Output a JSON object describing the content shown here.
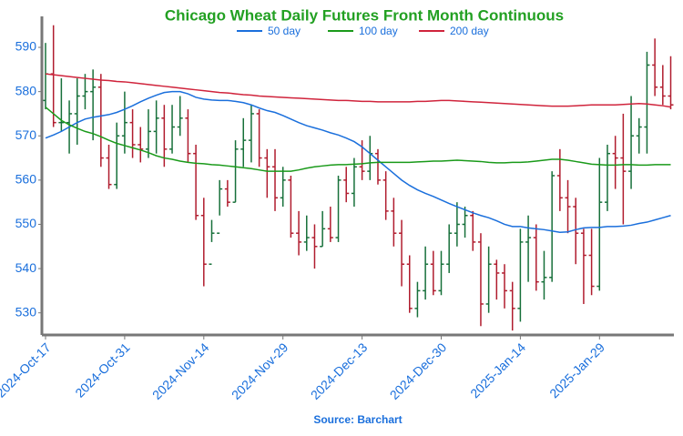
{
  "chart_data": {
    "type": "ohlc",
    "title": "Chicago Wheat Daily Futures Front Month Continuous",
    "source": "Source: Barchart",
    "x": [
      "2024-Oct-17",
      "2024-Oct-18",
      "2024-Oct-21",
      "2024-Oct-22",
      "2024-Oct-23",
      "2024-Oct-24",
      "2024-Oct-25",
      "2024-Oct-28",
      "2024-Oct-29",
      "2024-Oct-30",
      "2024-Oct-31",
      "2024-Nov-01",
      "2024-Nov-04",
      "2024-Nov-05",
      "2024-Nov-06",
      "2024-Nov-07",
      "2024-Nov-08",
      "2024-Nov-11",
      "2024-Nov-12",
      "2024-Nov-13",
      "2024-Nov-14",
      "2024-Nov-15",
      "2024-Nov-18",
      "2024-Nov-19",
      "2024-Nov-20",
      "2024-Nov-21",
      "2024-Nov-22",
      "2024-Nov-25",
      "2024-Nov-26",
      "2024-Nov-27",
      "2024-Nov-29",
      "2024-Dec-02",
      "2024-Dec-03",
      "2024-Dec-04",
      "2024-Dec-05",
      "2024-Dec-06",
      "2024-Dec-09",
      "2024-Dec-10",
      "2024-Dec-11",
      "2024-Dec-12",
      "2024-Dec-13",
      "2024-Dec-16",
      "2024-Dec-17",
      "2024-Dec-18",
      "2024-Dec-19",
      "2024-Dec-20",
      "2024-Dec-23",
      "2024-Dec-24",
      "2024-Dec-26",
      "2024-Dec-27",
      "2024-Dec-30",
      "2024-Dec-31",
      "2025-Jan-02",
      "2025-Jan-03",
      "2025-Jan-06",
      "2025-Jan-07",
      "2025-Jan-08",
      "2025-Jan-09",
      "2025-Jan-10",
      "2025-Jan-13",
      "2025-Jan-14",
      "2025-Jan-15",
      "2025-Jan-16",
      "2025-Jan-17",
      "2025-Jan-21",
      "2025-Jan-22",
      "2025-Jan-23",
      "2025-Jan-24",
      "2025-Jan-27",
      "2025-Jan-28",
      "2025-Jan-29",
      "2025-Jan-30",
      "2025-Jan-31",
      "2025-Feb-03",
      "2025-Feb-04",
      "2025-Feb-05",
      "2025-Feb-06",
      "2025-Feb-07",
      "2025-Feb-10",
      "2025-Feb-11"
    ],
    "xticks": [
      "2024-Oct-17",
      "2024-Oct-31",
      "2024-Nov-14",
      "2024-Nov-29",
      "2024-Dec-13",
      "2024-Dec-30",
      "2025-Jan-14",
      "2025-Jan-29"
    ],
    "ylim": [
      525,
      597
    ],
    "yticks": [
      530,
      540,
      550,
      560,
      570,
      580,
      590
    ],
    "up_color": "#17703a",
    "down_color": "#b01c2e",
    "legend": "top",
    "ohlc": {
      "open": [
        578,
        584,
        573,
        573,
        575,
        579,
        580,
        581,
        565,
        559,
        570,
        573,
        568,
        567,
        571,
        574,
        567,
        572,
        574,
        566,
        552,
        541,
        548,
        558,
        555,
        567,
        569,
        575,
        565,
        563,
        556,
        560,
        548,
        546,
        547,
        545,
        549,
        547,
        560,
        557,
        563,
        562,
        566,
        560,
        553,
        548,
        541,
        531,
        535,
        541,
        535,
        541,
        548,
        550,
        552,
        546,
        532,
        541,
        539,
        535,
        531,
        546,
        547,
        537,
        538,
        561,
        556,
        554,
        548,
        543,
        536,
        555,
        566,
        565,
        562,
        570,
        572,
        586,
        581,
        579
      ],
      "high": [
        591,
        595,
        583,
        578,
        583,
        584,
        585,
        584,
        568,
        573,
        580,
        576,
        572,
        576,
        578,
        577,
        577,
        579,
        576,
        568,
        556,
        551,
        560,
        560,
        569,
        574,
        577,
        576,
        567,
        567,
        563,
        561,
        553,
        552,
        550,
        553,
        554,
        561,
        563,
        565,
        569,
        570,
        567,
        562,
        556,
        551,
        543,
        537,
        545,
        544,
        544,
        550,
        555,
        554,
        553,
        548,
        545,
        542,
        541,
        537,
        549,
        552,
        550,
        544,
        562,
        567,
        560,
        556,
        549,
        549,
        565,
        568,
        570,
        575,
        579,
        574,
        589,
        592,
        586,
        588
      ],
      "low": [
        576,
        572,
        571,
        566,
        568,
        576,
        569,
        563,
        558,
        558,
        566,
        565,
        564,
        565,
        566,
        563,
        566,
        570,
        564,
        551,
        536,
        546,
        552,
        554,
        555,
        563,
        564,
        563,
        556,
        553,
        554,
        547,
        543,
        544,
        540,
        545,
        546,
        546,
        555,
        554,
        560,
        560,
        559,
        551,
        545,
        536,
        530,
        529,
        533,
        534,
        534,
        539,
        545,
        547,
        544,
        527,
        530,
        533,
        531,
        526,
        528,
        537,
        535,
        533,
        537,
        553,
        548,
        541,
        532,
        534,
        535,
        553,
        558,
        550,
        558,
        566,
        566,
        579,
        577,
        576
      ],
      "close": [
        584,
        573,
        573,
        575,
        579,
        580,
        581,
        565,
        559,
        570,
        573,
        568,
        567,
        571,
        574,
        567,
        572,
        574,
        566,
        552,
        541,
        548,
        558,
        555,
        567,
        569,
        575,
        565,
        563,
        556,
        560,
        548,
        546,
        547,
        545,
        549,
        547,
        560,
        557,
        563,
        562,
        566,
        560,
        553,
        548,
        541,
        531,
        535,
        541,
        535,
        541,
        548,
        550,
        552,
        546,
        532,
        541,
        539,
        535,
        531,
        546,
        547,
        537,
        538,
        561,
        556,
        554,
        548,
        543,
        536,
        555,
        566,
        565,
        562,
        570,
        572,
        586,
        581,
        579,
        577
      ]
    },
    "series": [
      {
        "name": "50 day",
        "color": "#1a6fdc",
        "values": [
          569.5,
          570.2,
          571,
          572,
          573,
          573.8,
          574.2,
          574.5,
          574.8,
          575.3,
          576,
          576.8,
          577.7,
          578.5,
          579.2,
          579.8,
          580,
          580,
          579.5,
          578.7,
          578.3,
          578.1,
          578,
          578,
          577.8,
          577.5,
          577,
          576.3,
          575.7,
          575.3,
          574.6,
          573.8,
          573,
          572.3,
          571.8,
          571.3,
          570.7,
          570.2,
          569.5,
          568.7,
          567.5,
          566,
          564.5,
          563,
          561.5,
          560,
          558.8,
          557.8,
          557,
          556.3,
          555.5,
          554.7,
          554,
          553.3,
          552.6,
          552,
          551.5,
          550.8,
          550,
          549.5,
          549.5,
          549.2,
          549,
          548.8,
          548.5,
          548.2,
          548.3,
          548.8,
          549.2,
          549.3,
          549.3,
          549.5,
          549.5,
          549.6,
          549.8,
          550.2,
          550.5,
          551,
          551.5,
          552
        ]
      },
      {
        "name": "100 day",
        "color": "#1a9a1a",
        "values": [
          576.5,
          575,
          573.5,
          572.5,
          571.7,
          571,
          570.5,
          569.8,
          569,
          568.3,
          567.8,
          567.3,
          566.8,
          566.2,
          565.5,
          565,
          564.7,
          564.3,
          564,
          563.8,
          563.7,
          563.5,
          563.4,
          563.2,
          563,
          562.8,
          562.6,
          562.3,
          562,
          562,
          562,
          562,
          562.3,
          562.7,
          563,
          563.2,
          563.4,
          563.5,
          563.5,
          563.6,
          563.7,
          563.9,
          564,
          564,
          564,
          564,
          564,
          564.1,
          564.2,
          564.3,
          564.3,
          564.4,
          564.5,
          564.4,
          564.3,
          564.2,
          564,
          563.9,
          563.9,
          564,
          564,
          564.1,
          564.3,
          564.5,
          564.7,
          564.7,
          564.5,
          564.2,
          563.9,
          563.6,
          563.5,
          563.4,
          563.4,
          563.5,
          563.5,
          563.4,
          563.4,
          563.5,
          563.5,
          563.5
        ]
      },
      {
        "name": "200 day",
        "color": "#d0243c",
        "values": [
          584,
          583.8,
          583.6,
          583.4,
          583.2,
          583,
          582.8,
          582.6,
          582.5,
          582.3,
          582.2,
          582,
          581.8,
          581.6,
          581.4,
          581.2,
          581,
          580.8,
          580.6,
          580.4,
          580.2,
          580,
          579.8,
          579.7,
          579.5,
          579.3,
          579.2,
          579,
          578.9,
          578.8,
          578.7,
          578.6,
          578.5,
          578.4,
          578.3,
          578.2,
          578.1,
          578,
          578,
          577.9,
          577.8,
          577.8,
          577.7,
          577.7,
          577.7,
          577.7,
          577.7,
          577.8,
          577.8,
          577.9,
          578,
          578,
          577.9,
          577.8,
          577.7,
          577.6,
          577.5,
          577.4,
          577.3,
          577.2,
          577.1,
          577,
          576.9,
          576.8,
          576.7,
          576.7,
          576.7,
          576.8,
          576.9,
          577,
          577,
          577,
          577,
          577.1,
          577.2,
          577.3,
          577.2,
          577,
          576.8,
          576.5
        ]
      }
    ]
  }
}
